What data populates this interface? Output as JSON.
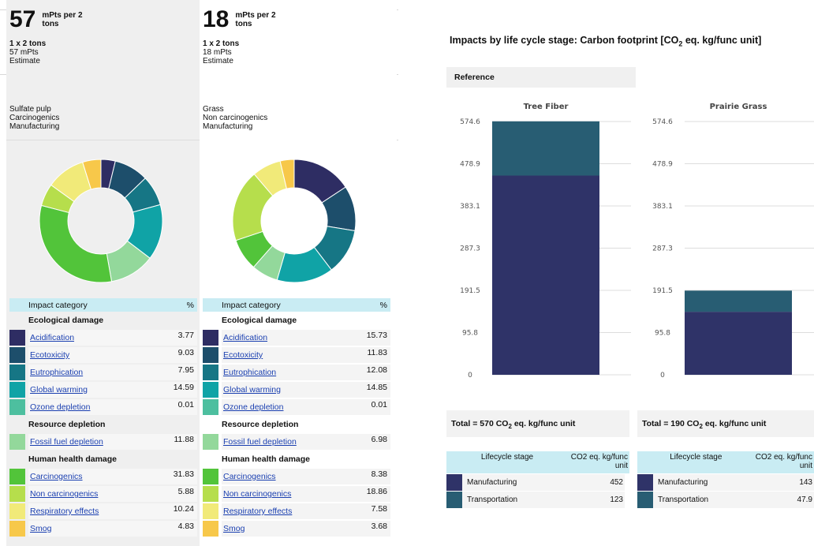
{
  "products": [
    {
      "score": "57",
      "score_unit": "mPts per 2 tons",
      "quantity": "1 x 2 tons",
      "mpts": "57 mPts",
      "estimate": "Estimate",
      "process": [
        "Sulfate pulp",
        "Carcinogenics",
        "Manufacturing"
      ],
      "table_header": {
        "category": "Impact category",
        "pct": "%"
      },
      "groups": [
        {
          "title": "Ecological damage",
          "rows": [
            {
              "label": "Acidification",
              "value": "3.77",
              "color": "#2e2d63"
            },
            {
              "label": "Ecotoxicity",
              "value": "9.03",
              "color": "#1d4e6b"
            },
            {
              "label": "Eutrophication",
              "value": "7.95",
              "color": "#167685"
            },
            {
              "label": "Global warming",
              "value": "14.59",
              "color": "#10a3a6"
            },
            {
              "label": "Ozone depletion",
              "value": "0.01",
              "color": "#4dbf9f"
            }
          ]
        },
        {
          "title": "Resource depletion",
          "rows": [
            {
              "label": "Fossil fuel depletion",
              "value": "11.88",
              "color": "#93d89b"
            }
          ]
        },
        {
          "title": "Human health damage",
          "rows": [
            {
              "label": "Carcinogenics",
              "value": "31.83",
              "color": "#52c43a"
            },
            {
              "label": "Non carcinogenics",
              "value": "5.88",
              "color": "#b6de4c"
            },
            {
              "label": "Respiratory effects",
              "value": "10.24",
              "color": "#f1ea79"
            },
            {
              "label": "Smog",
              "value": "4.83",
              "color": "#f7c84a"
            }
          ]
        }
      ]
    },
    {
      "score": "18",
      "score_unit": "mPts per 2 tons",
      "quantity": "1 x 2 tons",
      "mpts": "18 mPts",
      "estimate": "Estimate",
      "process": [
        "Grass",
        "Non carcinogenics",
        "Manufacturing"
      ],
      "table_header": {
        "category": "Impact category",
        "pct": "%"
      },
      "groups": [
        {
          "title": "Ecological damage",
          "rows": [
            {
              "label": "Acidification",
              "value": "15.73",
              "color": "#2e2d63"
            },
            {
              "label": "Ecotoxicity",
              "value": "11.83",
              "color": "#1d4e6b"
            },
            {
              "label": "Eutrophication",
              "value": "12.08",
              "color": "#167685"
            },
            {
              "label": "Global warming",
              "value": "14.85",
              "color": "#10a3a6"
            },
            {
              "label": "Ozone depletion",
              "value": "0.01",
              "color": "#4dbf9f"
            }
          ]
        },
        {
          "title": "Resource depletion",
          "rows": [
            {
              "label": "Fossil fuel depletion",
              "value": "6.98",
              "color": "#93d89b"
            }
          ]
        },
        {
          "title": "Human health damage",
          "rows": [
            {
              "label": "Carcinogenics",
              "value": "8.38",
              "color": "#52c43a"
            },
            {
              "label": "Non carcinogenics",
              "value": "18.86",
              "color": "#b6de4c"
            },
            {
              "label": "Respiratory effects",
              "value": "7.58",
              "color": "#f1ea79"
            },
            {
              "label": "Smog",
              "value": "3.68",
              "color": "#f7c84a"
            }
          ]
        }
      ]
    }
  ],
  "lifecycle": {
    "title_pre": "Impacts by life cycle stage: Carbon footprint [CO",
    "title_sub": "2",
    "title_post": " eq. kg/func unit]",
    "reference": "Reference",
    "yticks": [
      "574.6",
      "478.9",
      "383.1",
      "287.3",
      "191.5",
      "95.8",
      "0"
    ],
    "colors": {
      "manufacturing": "#2f3368",
      "transportation": "#285d73"
    },
    "panels": [
      {
        "name": "Tree Fiber",
        "total_pre": "Total = 570 CO",
        "total_sub": "2",
        "total_post": " eq. kg/func unit",
        "header_stage": "Lifecycle stage",
        "header_value": "CO2 eq. kg/func unit",
        "rows": [
          {
            "stage": "Manufacturing",
            "value": "452"
          },
          {
            "stage": "Transportation",
            "value": "123"
          }
        ]
      },
      {
        "name": "Prairie Grass",
        "total_pre": "Total = 190 CO",
        "total_sub": "2",
        "total_post": " eq. kg/func unit",
        "header_stage": "Lifecycle stage",
        "header_value": "CO2 eq. kg/func unit",
        "rows": [
          {
            "stage": "Manufacturing",
            "value": "143"
          },
          {
            "stage": "Transportation",
            "value": "47.9"
          }
        ]
      }
    ]
  },
  "chart_data": [
    {
      "type": "pie",
      "categories": [
        "Acidification",
        "Ecotoxicity",
        "Eutrophication",
        "Global warming",
        "Ozone depletion",
        "Fossil fuel depletion",
        "Carcinogenics",
        "Non carcinogenics",
        "Respiratory effects",
        "Smog"
      ],
      "values": [
        3.77,
        9.03,
        7.95,
        14.59,
        0.01,
        11.88,
        31.83,
        5.88,
        10.24,
        4.83
      ]
    },
    {
      "type": "pie",
      "categories": [
        "Acidification",
        "Ecotoxicity",
        "Eutrophication",
        "Global warming",
        "Ozone depletion",
        "Fossil fuel depletion",
        "Carcinogenics",
        "Non carcinogenics",
        "Respiratory effects",
        "Smog"
      ],
      "values": [
        15.73,
        11.83,
        12.08,
        14.85,
        0.01,
        6.98,
        8.38,
        18.86,
        7.58,
        3.68
      ]
    },
    {
      "type": "bar",
      "title": "Impacts by life cycle stage: Carbon footprint [CO2 eq. kg/func unit]",
      "categories": [
        "Tree Fiber",
        "Prairie Grass"
      ],
      "series": [
        {
          "name": "Manufacturing",
          "values": [
            452,
            143
          ]
        },
        {
          "name": "Transportation",
          "values": [
            123,
            47.9
          ]
        }
      ],
      "ylim": [
        0,
        574.6
      ],
      "yticks": [
        0,
        95.8,
        191.5,
        287.3,
        383.1,
        478.9,
        574.6
      ]
    }
  ]
}
